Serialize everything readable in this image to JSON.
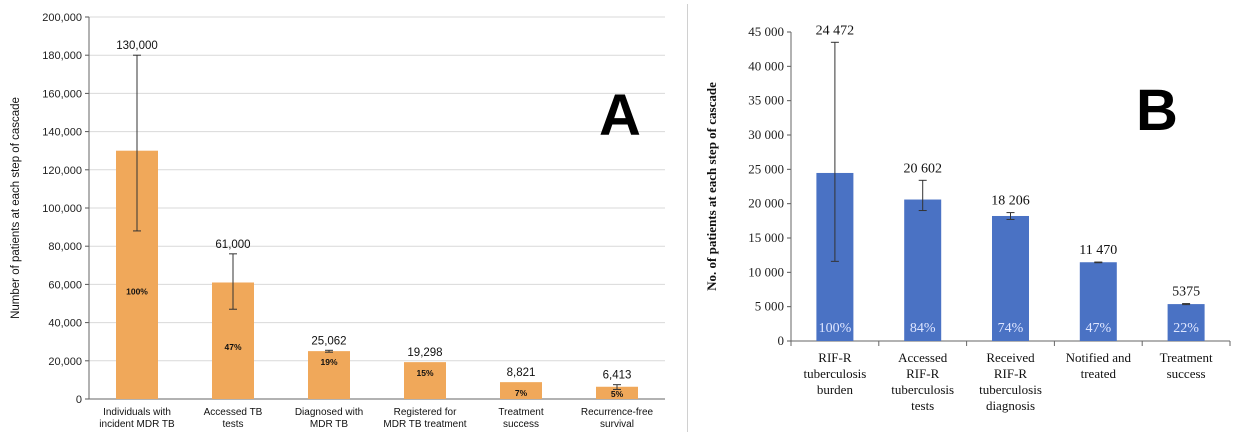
{
  "chart_data": [
    {
      "panel": "A",
      "type": "bar",
      "panel_letter": "A",
      "ylabel": "Number of patients at each step of cascade",
      "ylim": [
        0,
        200000
      ],
      "yticks": [
        "0",
        "20,000",
        "40,000",
        "60,000",
        "80,000",
        "100,000",
        "120,000",
        "140,000",
        "160,000",
        "180,000",
        "200,000"
      ],
      "grid": true,
      "bar_color": "#F0A85A",
      "categories": [
        [
          "Individuals with",
          "incident MDR TB"
        ],
        [
          "Accessed TB",
          "tests"
        ],
        [
          "Diagnosed with",
          "MDR TB"
        ],
        [
          "Registered for",
          "MDR TB treatment"
        ],
        [
          "Treatment",
          "success"
        ],
        [
          "Recurrence-free",
          "survival"
        ]
      ],
      "values": [
        130000,
        61000,
        25062,
        19298,
        8821,
        6413
      ],
      "value_labels": [
        "130,000",
        "61,000",
        "25,062",
        "19,298",
        "8,821",
        "6,413"
      ],
      "percent_labels": [
        "100%",
        "47%",
        "19%",
        "15%",
        "7%",
        "5%"
      ],
      "error_low": [
        88000,
        47000,
        24500,
        19298,
        8821,
        5000
      ],
      "error_high": [
        180000,
        76000,
        25500,
        19298,
        8821,
        7500
      ]
    },
    {
      "panel": "B",
      "type": "bar",
      "panel_letter": "B",
      "ylabel": "No. of patients at each step of cascade",
      "ylim": [
        0,
        45000
      ],
      "yticks": [
        "0",
        "5 000",
        "10 000",
        "15 000",
        "20 000",
        "25 000",
        "30 000",
        "35 000",
        "40 000",
        "45 000"
      ],
      "grid": false,
      "bar_color": "#4A72C4",
      "categories": [
        [
          "RIF-R",
          "tuberculosis",
          "burden"
        ],
        [
          "Accessed",
          "RIF-R",
          "tuberculosis",
          "tests"
        ],
        [
          "Received",
          "RIF-R",
          "tuberculosis",
          "diagnosis"
        ],
        [
          "Notified and",
          "treated"
        ],
        [
          "Treatment",
          "success"
        ]
      ],
      "values": [
        24472,
        20602,
        18206,
        11470,
        5375
      ],
      "value_labels": [
        "24 472",
        "20 602",
        "18 206",
        "11 470",
        "5375"
      ],
      "percent_labels": [
        "100%",
        "84%",
        "74%",
        "47%",
        "22%"
      ],
      "error_low": [
        11600,
        19000,
        17700,
        11400,
        5300
      ],
      "error_high": [
        43500,
        23400,
        18700,
        11500,
        5450
      ]
    }
  ]
}
